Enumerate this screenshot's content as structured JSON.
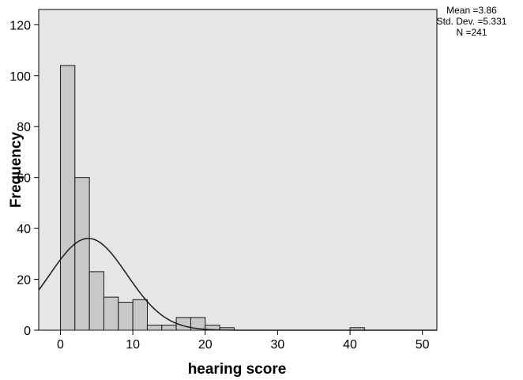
{
  "chart_data": {
    "type": "bar",
    "xlabel": "hearing score",
    "ylabel": "Frequency",
    "xlim": [
      -3,
      52
    ],
    "ylim": [
      0,
      126
    ],
    "x_ticks": [
      "0",
      "10",
      "20",
      "30",
      "40",
      "50"
    ],
    "y_ticks": [
      "0",
      "20",
      "40",
      "60",
      "80",
      "100",
      "120"
    ],
    "bin_width": 2,
    "bins": [
      {
        "start": 0,
        "count": 104
      },
      {
        "start": 2,
        "count": 60
      },
      {
        "start": 4,
        "count": 23
      },
      {
        "start": 6,
        "count": 13
      },
      {
        "start": 8,
        "count": 11
      },
      {
        "start": 10,
        "count": 12
      },
      {
        "start": 12,
        "count": 2
      },
      {
        "start": 14,
        "count": 2
      },
      {
        "start": 16,
        "count": 5
      },
      {
        "start": 18,
        "count": 5
      },
      {
        "start": 20,
        "count": 2
      },
      {
        "start": 22,
        "count": 1
      },
      {
        "start": 40,
        "count": 1
      }
    ],
    "normal_curve": {
      "mean": 3.86,
      "sd": 5.331,
      "n": 241
    },
    "stats_text": [
      "Mean =3.86",
      "Std. Dev. =5.331",
      "N =241"
    ],
    "colors": {
      "plot_background": "#e6e6e6",
      "bar_fill": "#c8c8c8",
      "bar_stroke": "#1a1a1a",
      "curve": "#1a1a1a"
    }
  }
}
